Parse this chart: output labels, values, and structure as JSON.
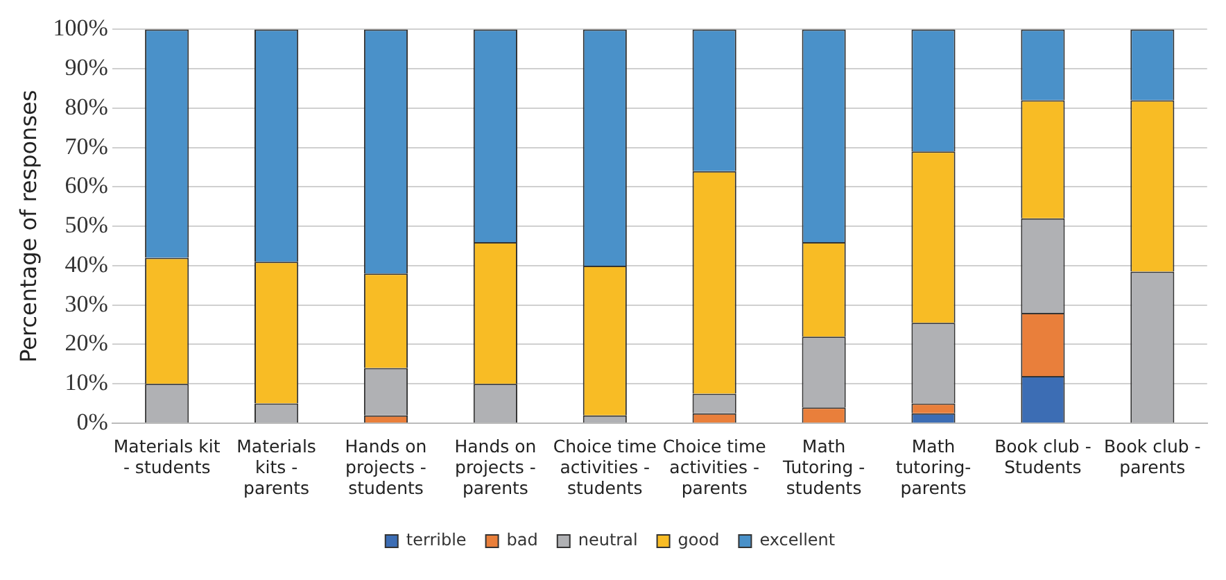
{
  "chart_data": {
    "type": "bar",
    "stacked": true,
    "ylabel": "Percentage of responses",
    "categories": [
      "Materials kit - students",
      "Materials kits - parents",
      "Hands on projects - students",
      "Hands on projects - parents",
      "Choice time activities - students",
      "Choice time activities - parents",
      "Math Tutoring - students",
      "Math tutoring-parents",
      "Book club - Students",
      "Book club - parents"
    ],
    "series": [
      {
        "name": "terrible",
        "color": "#3c6db4",
        "values": [
          0,
          0,
          0,
          0,
          0,
          0,
          0,
          2.5,
          12,
          0
        ]
      },
      {
        "name": "bad",
        "color": "#e97f3b",
        "values": [
          0,
          0,
          2,
          0,
          0,
          2.5,
          4,
          2.5,
          16,
          0
        ]
      },
      {
        "name": "neutral",
        "color": "#b0b1b4",
        "values": [
          10,
          5,
          12,
          10,
          2,
          5,
          18,
          20.5,
          24,
          38.5
        ]
      },
      {
        "name": "good",
        "color": "#f8bc25",
        "values": [
          32,
          36,
          24,
          36,
          38,
          56.5,
          24,
          43.5,
          30,
          43.5
        ]
      },
      {
        "name": "excellent",
        "color": "#4a91c9",
        "values": [
          58,
          59,
          62,
          54,
          60,
          36,
          54,
          31,
          18,
          18
        ]
      }
    ],
    "ylim": [
      0,
      100
    ],
    "yticks": [
      {
        "value": 0,
        "label": "0%"
      },
      {
        "value": 10,
        "label": "10%"
      },
      {
        "value": 20,
        "label": "20%"
      },
      {
        "value": 30,
        "label": "30%"
      },
      {
        "value": 40,
        "label": "40%"
      },
      {
        "value": 50,
        "label": "50%"
      },
      {
        "value": 60,
        "label": "60%"
      },
      {
        "value": 70,
        "label": "70%"
      },
      {
        "value": 80,
        "label": "80%"
      },
      {
        "value": 90,
        "label": "90%"
      },
      {
        "value": 100,
        "label": "100%"
      }
    ],
    "grid": "y",
    "legend": "bottom"
  }
}
